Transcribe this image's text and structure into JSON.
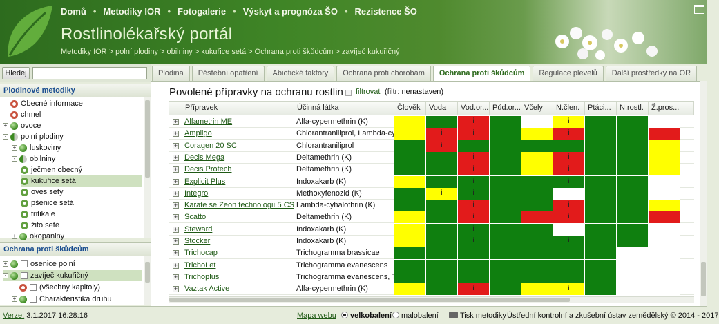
{
  "header": {
    "nav": [
      "Domů",
      "Metodiky IOR",
      "Fotogalerie",
      "Výskyt a prognóza ŠO",
      "Rezistence ŠO"
    ],
    "title": "Rostlinolékařský portál",
    "breadcrumb": "Metodiky IOR > polní plodiny > obilniny > kukuřice setá > Ochrana proti škůdcům > zavíječ kukuřičný"
  },
  "search": {
    "button": "Hledej",
    "value": ""
  },
  "left_panel_1": {
    "title": "Plodinové metodiky",
    "items": [
      {
        "label": "Obecné informace",
        "icon": "ring-red"
      },
      {
        "label": "chmel",
        "icon": "ring-red"
      },
      {
        "label": "ovoce",
        "icon": "ball"
      },
      {
        "label": "polní plodiny",
        "icon": "ball-half"
      },
      {
        "label": "luskoviny",
        "icon": "ball"
      },
      {
        "label": "obilniny",
        "icon": "ball-half"
      },
      {
        "label": "ječmen obecný",
        "icon": "ring-green"
      },
      {
        "label": "kukuřice setá",
        "icon": "ring-green"
      },
      {
        "label": "oves setý",
        "icon": "ring-green"
      },
      {
        "label": "pšenice setá",
        "icon": "ring-green"
      },
      {
        "label": "tritikale",
        "icon": "ring-green"
      },
      {
        "label": "žito seté",
        "icon": "ring-green"
      },
      {
        "label": "okopaniny",
        "icon": "ball"
      }
    ]
  },
  "left_panel_2": {
    "title": "Ochrana proti škůdcům",
    "items": [
      {
        "label": "osenice polní"
      },
      {
        "label": "zavíječ kukuřičný"
      },
      {
        "label": "(všechny kapitoly)"
      },
      {
        "label": "Charakteristika druhu"
      }
    ]
  },
  "tabs": [
    "Plodina",
    "Pěstební opatření",
    "Abiotické faktory",
    "Ochrana proti chorobám",
    "Ochrana proti škůdcům",
    "Regulace plevelů",
    "Další prostředky na OR"
  ],
  "active_tab": "Ochrana proti škůdcům",
  "main": {
    "title": "Povolené přípravky na ochranu rostlin",
    "filter_link": "filtrovat",
    "filter_state": "(filtr: nenastaven)"
  },
  "table": {
    "columns": [
      "Přípravek",
      "Účinná látka",
      "Člověk",
      "Voda",
      "Vod.or...",
      "Půd.or...",
      "Včely",
      "N.člen.",
      "Ptáci...",
      "N.rostl.",
      "Ž.pros..."
    ],
    "rows": [
      {
        "name": "Alfametrin ME",
        "substance": "Alfa-cypermethrin (K)",
        "risk": [
          "y",
          "g",
          "r:i",
          "g",
          "w",
          "y:i",
          "g",
          "g",
          "w"
        ]
      },
      {
        "name": "Ampligo",
        "substance": "Chlorantraniliprol, Lambda-cy...",
        "risk": [
          "y",
          "r:i",
          "r:i",
          "g",
          "y:i",
          "r:i",
          "g",
          "g",
          "r"
        ]
      },
      {
        "name": "Coragen 20 SC",
        "substance": "Chlorantraniliprol",
        "risk": [
          "g:i",
          "r:i",
          "g",
          "g",
          "g",
          "g",
          "g",
          "g",
          "y"
        ]
      },
      {
        "name": "Decis Mega",
        "substance": "Deltamethrin (K)",
        "risk": [
          "g",
          "g",
          "r:i",
          "g",
          "y:i",
          "r:i",
          "g",
          "g",
          "y"
        ]
      },
      {
        "name": "Decis Protech",
        "substance": "Deltamethrin (K)",
        "risk": [
          "g",
          "g",
          "r:i",
          "g",
          "y:i",
          "r:i",
          "g",
          "g",
          "y"
        ]
      },
      {
        "name": "Explicit Plus",
        "substance": "Indoxakarb (K)",
        "risk": [
          "y:i",
          "g",
          "g:i",
          "g",
          "g",
          "g:i",
          "g",
          "g",
          "w"
        ]
      },
      {
        "name": "Integro",
        "substance": "Methoxyfenozid (K)",
        "risk": [
          "g",
          "y:i",
          "g:i",
          "g",
          "g",
          "w",
          "g",
          "g",
          "w"
        ]
      },
      {
        "name": "Karate se Zeon technologií 5 CS",
        "substance": "Lambda-cyhalothrin (K)",
        "risk": [
          "g",
          "g",
          "r:i",
          "g",
          "g",
          "r:i",
          "g",
          "g",
          "y"
        ]
      },
      {
        "name": "Scatto",
        "substance": "Deltamethrin (K)",
        "risk": [
          "y",
          "g",
          "r:i",
          "g",
          "r:i",
          "r:i",
          "g",
          "g",
          "r"
        ]
      },
      {
        "name": "Steward",
        "substance": "Indoxakarb (K)",
        "risk": [
          "y:i",
          "g",
          "g:i",
          "g",
          "g",
          "w",
          "g",
          "g",
          "w"
        ]
      },
      {
        "name": "Stocker",
        "substance": "Indoxakarb (K)",
        "risk": [
          "y:i",
          "g",
          "g:i",
          "g",
          "g",
          "g:i",
          "g",
          "g",
          "w"
        ]
      },
      {
        "name": "Trichocap",
        "substance": "Trichogramma brassicae",
        "risk": [
          "g",
          "g",
          "g",
          "g",
          "g",
          "g",
          "g",
          "w",
          "w"
        ]
      },
      {
        "name": "TrichoLet",
        "substance": "Trichogramma evanescens",
        "risk": [
          "g",
          "g",
          "g",
          "g",
          "g",
          "g",
          "g",
          "w",
          "w"
        ]
      },
      {
        "name": "Trichoplus",
        "substance": "Trichogramma evanescens, Tr...",
        "risk": [
          "g",
          "g",
          "g",
          "g",
          "g",
          "g",
          "g",
          "w",
          "w"
        ]
      },
      {
        "name": "Vaztak Active",
        "substance": "Alfa-cypermethrin (K)",
        "risk": [
          "y",
          "g",
          "r:i",
          "g",
          "y",
          "y:i",
          "g",
          "w",
          "w"
        ]
      }
    ]
  },
  "footer": {
    "version_label": "Verze:",
    "version": "3.1.2017 16:28:16",
    "sitemap": "Mapa webu",
    "big": "velkobalení",
    "small": "malobalení",
    "print": "Tisk metodiky",
    "copyright": "Ústřední kontrolní a zkušební ústav zemědělský © 2014 - 2017"
  },
  "colors": {
    "g": "#0f7f0f",
    "y": "#ffff00",
    "r": "#e21b1b",
    "w": "#ffffff"
  }
}
